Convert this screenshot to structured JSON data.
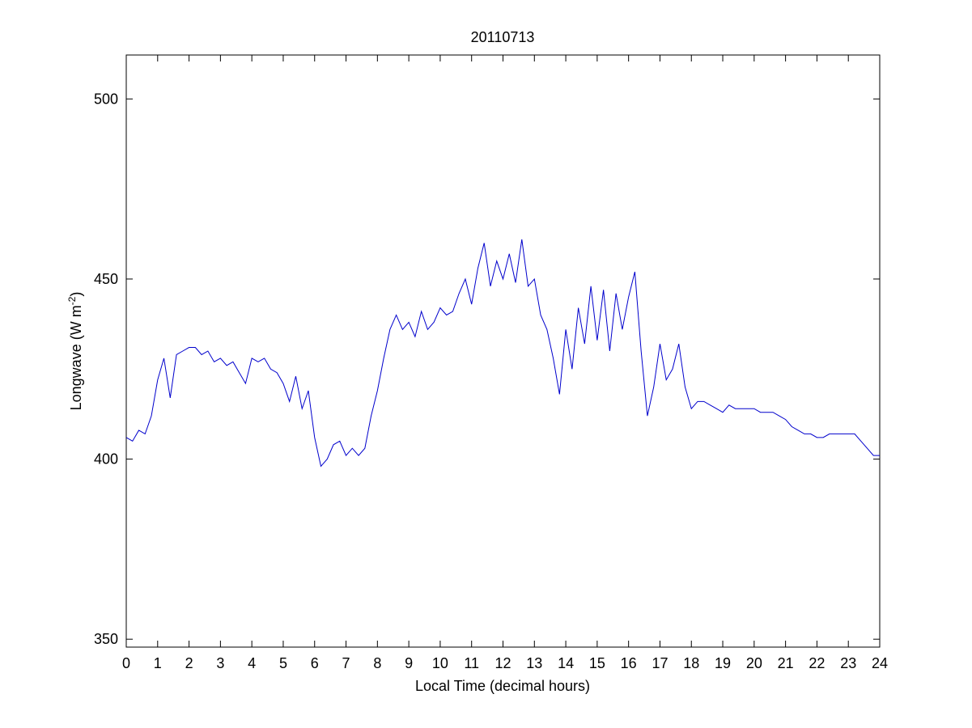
{
  "chart_data": {
    "type": "line",
    "title": "20110713",
    "xlabel": "Local Time (decimal hours)",
    "ylabel": {
      "text": "Longwave (W m",
      "superscript": "-2",
      "suffix": ")"
    },
    "x": [
      0,
      0.2,
      0.4,
      0.6,
      0.8,
      1,
      1.2,
      1.4,
      1.6,
      1.8,
      2,
      2.2,
      2.4,
      2.6,
      2.8,
      3,
      3.2,
      3.4,
      3.6,
      3.8,
      4,
      4.2,
      4.4,
      4.6,
      4.8,
      5,
      5.2,
      5.4,
      5.6,
      5.8,
      6,
      6.2,
      6.4,
      6.6,
      6.8,
      7,
      7.2,
      7.4,
      7.6,
      7.8,
      8,
      8.2,
      8.4,
      8.6,
      8.8,
      9,
      9.2,
      9.4,
      9.6,
      9.8,
      10,
      10.2,
      10.4,
      10.6,
      10.8,
      11,
      11.2,
      11.4,
      11.6,
      11.8,
      12,
      12.2,
      12.4,
      12.6,
      12.8,
      13,
      13.2,
      13.4,
      13.6,
      13.8,
      14,
      14.2,
      14.4,
      14.6,
      14.8,
      15,
      15.2,
      15.4,
      15.6,
      15.8,
      16,
      16.2,
      16.4,
      16.6,
      16.8,
      17,
      17.2,
      17.4,
      17.6,
      17.8,
      18,
      18.2,
      18.4,
      18.6,
      18.8,
      19,
      19.2,
      19.4,
      19.6,
      19.8,
      20,
      20.2,
      20.4,
      20.6,
      20.8,
      21,
      21.2,
      21.4,
      21.6,
      21.8,
      22,
      22.2,
      22.4,
      22.6,
      22.8,
      23,
      23.2,
      23.4,
      23.6,
      23.8,
      24
    ],
    "series": [
      {
        "name": "Longwave",
        "color": "#0000cc",
        "values": [
          406,
          405,
          408,
          407,
          412,
          422,
          428,
          417,
          429,
          430,
          431,
          431,
          429,
          430,
          427,
          428,
          426,
          427,
          424,
          421,
          428,
          427,
          428,
          425,
          424,
          421,
          416,
          423,
          414,
          419,
          406,
          398,
          400,
          404,
          405,
          401,
          403,
          401,
          403,
          412,
          419,
          428,
          436,
          440,
          436,
          438,
          434,
          441,
          436,
          438,
          442,
          440,
          441,
          446,
          450,
          443,
          453,
          460,
          448,
          455,
          450,
          457,
          449,
          461,
          448,
          450,
          440,
          436,
          428,
          418,
          436,
          425,
          442,
          432,
          448,
          433,
          447,
          430,
          446,
          436,
          445,
          452,
          430,
          412,
          420,
          432,
          422,
          425,
          432,
          420,
          414,
          416,
          416,
          415,
          414,
          413,
          415,
          414,
          414,
          414,
          414,
          413,
          413,
          413,
          412,
          411,
          409,
          408,
          407,
          407,
          406,
          406,
          407,
          407,
          407,
          407,
          407,
          405,
          403,
          401,
          401
        ]
      }
    ],
    "xlim": [
      0,
      24
    ],
    "ylim": [
      347.8,
      512.2
    ],
    "xticks": [
      0,
      1,
      2,
      3,
      4,
      5,
      6,
      7,
      8,
      9,
      10,
      11,
      12,
      13,
      14,
      15,
      16,
      17,
      18,
      19,
      20,
      21,
      22,
      23,
      24
    ],
    "yticks": [
      350,
      400,
      450,
      500
    ]
  }
}
